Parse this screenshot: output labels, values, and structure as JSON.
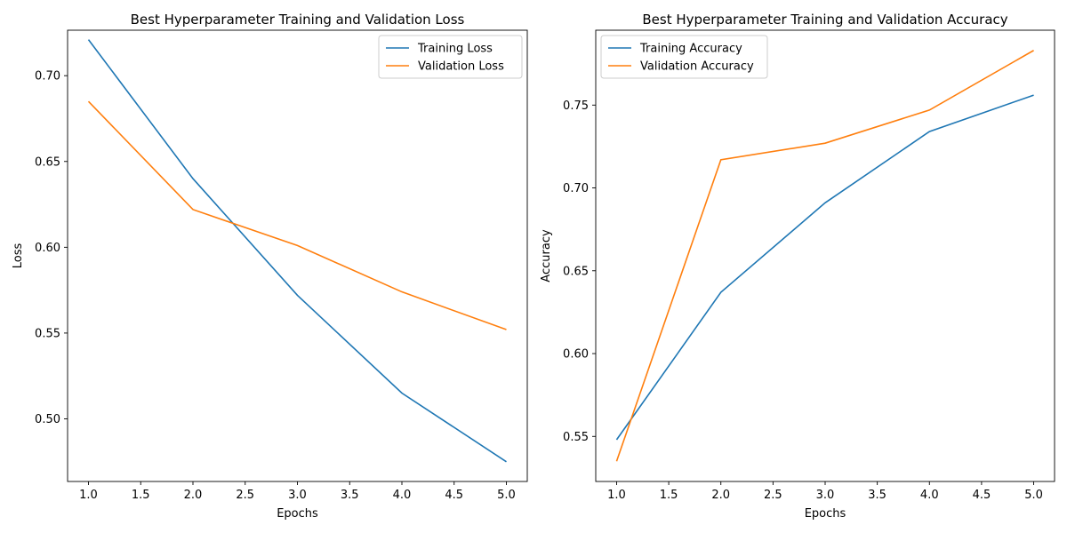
{
  "chart_data": [
    {
      "type": "line",
      "title": "Best Hyperparameter Training and Validation Loss",
      "xlabel": "Epochs",
      "ylabel": "Loss",
      "x": [
        1,
        2,
        3,
        4,
        5
      ],
      "xlim": [
        0.8,
        5.2
      ],
      "ylim": [
        0.4635,
        0.7265
      ],
      "xticks": [
        1.0,
        1.5,
        2.0,
        2.5,
        3.0,
        3.5,
        4.0,
        4.5,
        5.0
      ],
      "xtick_labels": [
        "1.0",
        "1.5",
        "2.0",
        "2.5",
        "3.0",
        "3.5",
        "4.0",
        "4.5",
        "5.0"
      ],
      "yticks": [
        0.5,
        0.55,
        0.6,
        0.65,
        0.7
      ],
      "ytick_labels": [
        "0.50",
        "0.55",
        "0.60",
        "0.65",
        "0.70"
      ],
      "grid": false,
      "legend_position": "top-right",
      "series": [
        {
          "name": "Training Loss",
          "color": "#1f77b4",
          "values": [
            0.721,
            0.64,
            0.572,
            0.515,
            0.475
          ]
        },
        {
          "name": "Validation Loss",
          "color": "#ff7f0e",
          "values": [
            0.685,
            0.622,
            0.601,
            0.574,
            0.552
          ]
        }
      ]
    },
    {
      "type": "line",
      "title": "Best Hyperparameter Training and Validation Accuracy",
      "xlabel": "Epochs",
      "ylabel": "Accuracy",
      "x": [
        1,
        2,
        3,
        4,
        5
      ],
      "xlim": [
        0.8,
        5.2
      ],
      "ylim": [
        0.5228,
        0.7952
      ],
      "xticks": [
        1.0,
        1.5,
        2.0,
        2.5,
        3.0,
        3.5,
        4.0,
        4.5,
        5.0
      ],
      "xtick_labels": [
        "1.0",
        "1.5",
        "2.0",
        "2.5",
        "3.0",
        "3.5",
        "4.0",
        "4.5",
        "5.0"
      ],
      "yticks": [
        0.55,
        0.6,
        0.65,
        0.7,
        0.75
      ],
      "ytick_labels": [
        "0.55",
        "0.60",
        "0.65",
        "0.70",
        "0.75"
      ],
      "grid": false,
      "legend_position": "top-left",
      "series": [
        {
          "name": "Training Accuracy",
          "color": "#1f77b4",
          "values": [
            0.548,
            0.637,
            0.691,
            0.734,
            0.756
          ]
        },
        {
          "name": "Validation Accuracy",
          "color": "#ff7f0e",
          "values": [
            0.535,
            0.717,
            0.727,
            0.747,
            0.783
          ]
        }
      ]
    }
  ]
}
